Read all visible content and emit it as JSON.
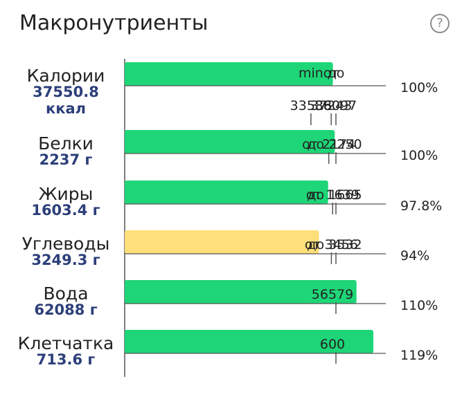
{
  "header": {
    "title": "Макронутриенты",
    "help_icon": "question-circle-icon"
  },
  "colors": {
    "ok": "#1ed677",
    "low": "#fedf7a",
    "name": "#222222",
    "value": "#2c3f7a",
    "axis": "#555555"
  },
  "chart_data": {
    "type": "bar",
    "categories": [
      "Калории",
      "Белки",
      "Жиры",
      "Углеводы",
      "Вода",
      "Клетчатка"
    ],
    "value_labels": [
      [
        "37550.8",
        "ккал"
      ],
      [
        "2237 г"
      ],
      [
        "1603.4 г"
      ],
      [
        "3249.3 г"
      ],
      [
        "62088 г"
      ],
      [
        "713.6 г"
      ]
    ],
    "values": [
      37550.8,
      2237,
      1603.4,
      3249.3,
      62088,
      713.6
    ],
    "percent_labels": [
      "100%",
      "100%",
      "97.8%",
      "94%",
      "110%",
      "119%"
    ],
    "status": [
      "ok",
      "ok",
      "ok",
      "low",
      "ok",
      "ok"
    ],
    "targets": [
      {
        "min": 33586,
        "from": 37243,
        "to": 38097,
        "words": {
          "min": "min",
          "from": "от",
          "to": "до"
        },
        "labels": {
          "min": "33586",
          "from": "37243",
          "to": "38097"
        }
      },
      {
        "from": 2174,
        "to": 2250,
        "label": [
          "от 2174",
          "до 2250"
        ]
      },
      {
        "from": 1639,
        "to": 1665,
        "label": [
          "от 1639",
          "до 1665"
        ]
      },
      {
        "from": 3456,
        "to": 3532,
        "label": [
          "от 3456",
          "до 3532"
        ]
      },
      {
        "value": 56579,
        "label": "56579"
      },
      {
        "value": 600,
        "label": "600"
      }
    ]
  }
}
